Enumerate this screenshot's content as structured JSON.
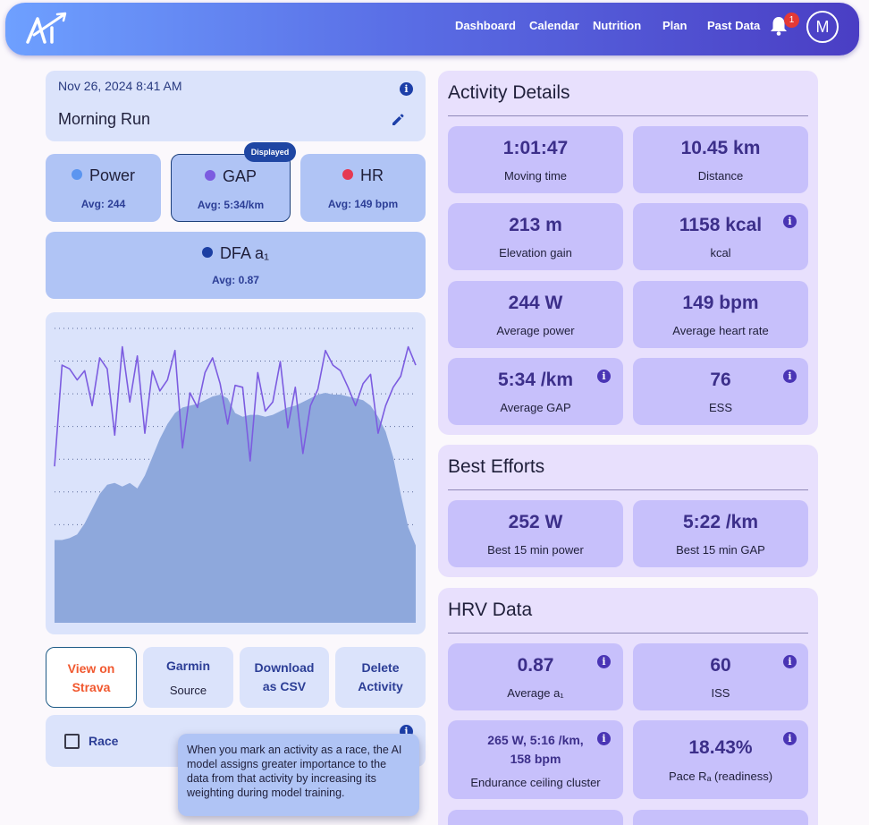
{
  "header": {
    "nav": [
      "Dashboard",
      "Calendar",
      "Nutrition",
      "Plan",
      "Past Data"
    ],
    "notification_count": "1",
    "avatar_initial": "M"
  },
  "activity": {
    "date": "Nov 26, 2024 8:41 AM",
    "title": "Morning Run"
  },
  "metrics": [
    {
      "name": "Power",
      "avg": "Avg: 244",
      "color": "#5b95f0"
    },
    {
      "name": "GAP",
      "avg": "Avg: 5:34/km",
      "color": "#7c5ce0"
    },
    {
      "name": "HR",
      "avg": "Avg: 149 bpm",
      "color": "#e53952"
    },
    {
      "name": "DFA a₁",
      "avg": "Avg: 0.87",
      "color": "#1c3fa3"
    }
  ],
  "displayed_badge": "Displayed",
  "chart_data": {
    "type": "area",
    "series": [
      {
        "values": [
          45,
          45,
          46,
          48,
          54,
          62,
          70,
          75,
          76,
          74,
          76,
          73,
          80,
          90,
          100,
          108,
          114,
          117,
          118,
          119,
          121,
          123,
          124,
          122,
          114,
          112,
          113,
          113,
          112,
          113,
          115,
          117,
          118,
          120,
          122,
          124,
          125,
          124,
          124,
          123,
          122,
          121,
          118,
          112,
          104,
          90,
          70,
          52,
          42
        ]
      },
      {
        "values": [
          85,
          140,
          138,
          132,
          137,
          118,
          144,
          138,
          102,
          150,
          120,
          145,
          103,
          137,
          126,
          132,
          148,
          95,
          125,
          117,
          136,
          144,
          130,
          108,
          129,
          128,
          88,
          136,
          115,
          120,
          142,
          106,
          128,
          92,
          118,
          127,
          148,
          140,
          137,
          128,
          118,
          130,
          135,
          103,
          118,
          128,
          134,
          150,
          140
        ]
      }
    ],
    "colors": [
      "#8ea8dc",
      "#7c5ce0"
    ],
    "grid": true
  },
  "buttons": {
    "strava": [
      "View on",
      "Strava"
    ],
    "garmin": {
      "title": "Garmin",
      "sub": "Source"
    },
    "csv": [
      "Download",
      "as CSV"
    ],
    "delete": [
      "Delete",
      "Activity"
    ]
  },
  "race": {
    "label": "Race",
    "tooltip": "When you mark an activity as a race, the AI model assigns greater importance to the data from that activity by increasing its weighting during model training."
  },
  "activity_details": {
    "title": "Activity Details",
    "tiles": [
      {
        "value": "1:01:47",
        "label": "Moving time"
      },
      {
        "value": "10.45 km",
        "label": "Distance"
      },
      {
        "value": "213 m",
        "label": "Elevation gain"
      },
      {
        "value": "1158 kcal",
        "label": "kcal"
      },
      {
        "value": "244 W",
        "label": "Average power"
      },
      {
        "value": "149 bpm",
        "label": "Average heart rate"
      },
      {
        "value": "5:34 /km",
        "label": "Average GAP"
      },
      {
        "value": "76",
        "label": "ESS"
      }
    ]
  },
  "best_efforts": {
    "title": "Best Efforts",
    "tiles": [
      {
        "value": "252 W",
        "label": "Best 15 min power"
      },
      {
        "value": "5:22 /km",
        "label": "Best 15 min GAP"
      }
    ]
  },
  "hrv": {
    "title": "HRV Data",
    "tiles": [
      {
        "value": "0.87",
        "label": "Average a₁"
      },
      {
        "value": "60",
        "label": "ISS"
      },
      {
        "value": "265 W, 5:16 /km,",
        "value2": "158 bpm",
        "label": "Endurance ceiling cluster"
      },
      {
        "value": "18.43%",
        "label": "Pace Rₐ (readiness)"
      }
    ]
  }
}
